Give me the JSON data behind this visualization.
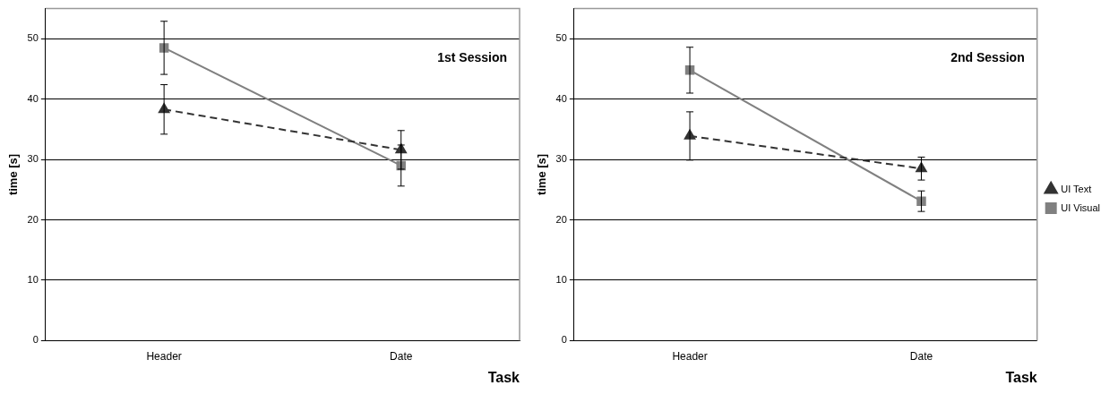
{
  "chart_data": [
    {
      "type": "line",
      "xlabel": "Task",
      "ylabel": "time [s]",
      "categories": [
        "Header",
        "Date"
      ],
      "ylim": [
        0,
        55
      ],
      "yticks": [
        0,
        10,
        20,
        30,
        40,
        50
      ],
      "grid": "y",
      "legend": false,
      "annotations": [
        "1st Session"
      ],
      "series": [
        {
          "color": "#333333",
          "values": [
            38.3,
            31.6
          ],
          "errors": [
            4.1,
            3.2
          ],
          "marker": "triangle",
          "line_style": "dashed"
        },
        {
          "color": "#808080",
          "values": [
            48.5,
            29.0
          ],
          "errors": [
            4.4,
            3.4
          ],
          "marker": "square",
          "line_style": "solid"
        }
      ]
    },
    {
      "type": "line",
      "xlabel": "Task",
      "ylabel": "time [s]",
      "categories": [
        "Header",
        "Date"
      ],
      "ylim": [
        0,
        55
      ],
      "yticks": [
        0,
        10,
        20,
        30,
        40,
        50
      ],
      "grid": "y",
      "legend": "right",
      "annotations": [
        "2nd Session"
      ],
      "series": [
        {
          "name": "UI Text",
          "color": "#333333",
          "values": [
            33.9,
            28.5
          ],
          "errors": [
            4.0,
            1.9
          ],
          "marker": "triangle",
          "line_style": "dashed"
        },
        {
          "name": "UI Visual",
          "color": "#808080",
          "values": [
            44.8,
            23.1
          ],
          "errors": [
            3.8,
            1.7
          ],
          "marker": "square",
          "line_style": "solid"
        }
      ]
    }
  ]
}
